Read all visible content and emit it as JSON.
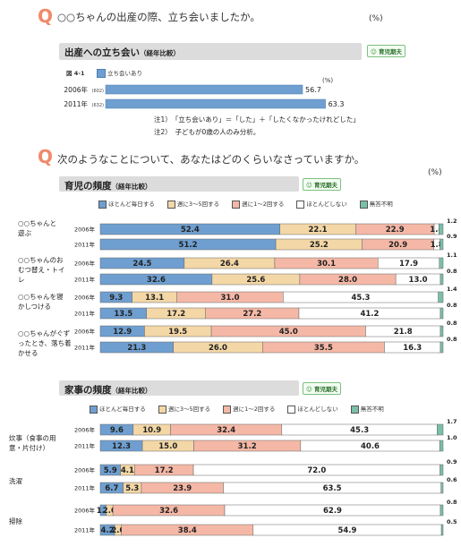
{
  "q1": {
    "mark": "Q",
    "text": "○○ちゃんの出産の際、立ち会いましたか。",
    "pct": "(%)"
  },
  "badge": "育児期夫",
  "sec1": {
    "title": "出産への立ち会い",
    "sub": "（経年比較）"
  },
  "fig": {
    "id": "図 4-1",
    "legend": "立ち会いあり",
    "pct": "(%)"
  },
  "notes": [
    {
      "label": "注1）",
      "text": "「立ち会いあり」＝「した」＋「したくなかったけれどした」"
    },
    {
      "label": "注2）",
      "text": "子どもが0歳の人のみ分析。"
    }
  ],
  "q2": {
    "mark": "Q",
    "text": "次のようなことについて、あなたはどのくらいなさっていますか。",
    "pct": "(%)"
  },
  "sec2": {
    "title": "育児の頻度",
    "sub": "（経年比較）"
  },
  "sec3": {
    "title": "家事の頻度",
    "sub": "（経年比較）"
  },
  "legend_items": [
    {
      "label": "ほとんど毎日する",
      "color": "#6f9fd0"
    },
    {
      "label": "週に3～5回する",
      "color": "#f3d7a6"
    },
    {
      "label": "週に1～2回する",
      "color": "#f5b8a6"
    },
    {
      "label": "ほとんどしない",
      "color": "#ffffff"
    },
    {
      "label": "無答不明",
      "color": "#7abfa8"
    }
  ],
  "chart_data": [
    {
      "type": "bar",
      "title": "出産への立ち会い",
      "series": [
        {
          "name": "立ち会いあり",
          "values": [
            56.7,
            63.3
          ]
        }
      ],
      "categories": [
        "2006年",
        "2011年"
      ],
      "counts": [
        "(602)",
        "(632)"
      ],
      "value_labels": [
        "56.7",
        "63.3"
      ]
    },
    {
      "type": "bar",
      "title": "育児の頻度",
      "groups": [
        {
          "label": "○○ちゃんと遊ぶ",
          "rows": [
            {
              "year": "2006年",
              "values": [
                52.4,
                22.1,
                22.9,
                1.4,
                1.2
              ],
              "labels": [
                "52.4",
                "22.1",
                "22.9",
                "1.4",
                "1.2"
              ]
            },
            {
              "year": "2011年",
              "values": [
                51.2,
                25.2,
                20.9,
                1.8,
                0.9
              ],
              "labels": [
                "51.2",
                "25.2",
                "20.9",
                "1.8",
                "0.9"
              ]
            }
          ]
        },
        {
          "label": "○○ちゃんのおむつ替え・トイレ",
          "rows": [
            {
              "year": "2006年",
              "values": [
                24.5,
                26.4,
                30.1,
                17.9,
                1.1
              ],
              "labels": [
                "24.5",
                "26.4",
                "30.1",
                "17.9",
                "1.1"
              ]
            },
            {
              "year": "2011年",
              "values": [
                32.6,
                25.6,
                28.0,
                13.0,
                0.8
              ],
              "labels": [
                "32.6",
                "25.6",
                "28.0",
                "13.0",
                "0.8"
              ]
            }
          ]
        },
        {
          "label": "○○ちゃんを寝かしつける",
          "rows": [
            {
              "year": "2006年",
              "values": [
                9.3,
                13.1,
                31.0,
                45.3,
                1.4
              ],
              "labels": [
                "9.3",
                "13.1",
                "31.0",
                "45.3",
                "1.4"
              ]
            },
            {
              "year": "2011年",
              "values": [
                13.5,
                17.2,
                27.2,
                41.2,
                0.8
              ],
              "labels": [
                "13.5",
                "17.2",
                "27.2",
                "41.2",
                "0.8"
              ]
            }
          ]
        },
        {
          "label": "○○ちゃんがぐずったとき、落ち着かせる",
          "rows": [
            {
              "year": "2006年",
              "values": [
                12.9,
                19.5,
                45.0,
                21.8,
                0.8
              ],
              "labels": [
                "12.9",
                "19.5",
                "45.0",
                "21.8",
                "0.8"
              ]
            },
            {
              "year": "2011年",
              "values": [
                21.3,
                26.0,
                35.5,
                16.3,
                0.8
              ],
              "labels": [
                "21.3",
                "26.0",
                "35.5",
                "16.3",
                "0.8"
              ]
            }
          ]
        }
      ]
    },
    {
      "type": "bar",
      "title": "家事の頻度",
      "groups": [
        {
          "label": "炊事（食事の用意・片付け）",
          "rows": [
            {
              "year": "2006年",
              "values": [
                9.6,
                10.9,
                32.4,
                45.3,
                1.7
              ],
              "labels": [
                "9.6",
                "10.9",
                "32.4",
                "45.3",
                "1.7"
              ]
            },
            {
              "year": "2011年",
              "values": [
                12.3,
                15.0,
                31.2,
                40.6,
                1.0
              ],
              "labels": [
                "12.3",
                "15.0",
                "31.2",
                "40.6",
                "1.0"
              ]
            }
          ]
        },
        {
          "label": "洗濯",
          "rows": [
            {
              "year": "2006年",
              "values": [
                5.9,
                4.1,
                17.2,
                72.0,
                0.9
              ],
              "labels": [
                "5.9",
                "4.1",
                "17.2",
                "72.0",
                "0.9"
              ]
            },
            {
              "year": "2011年",
              "values": [
                6.7,
                5.3,
                23.9,
                63.5,
                0.6
              ],
              "labels": [
                "6.7",
                "5.3",
                "23.9",
                "63.5",
                "0.6"
              ]
            }
          ]
        },
        {
          "label": "掃除",
          "rows": [
            {
              "year": "2006年",
              "values": [
                1.7,
                2.0,
                32.6,
                62.9,
                0.8
              ],
              "labels": [
                "1.7",
                "2.0",
                "32.6",
                "62.9",
                "0.8"
              ]
            },
            {
              "year": "2011年",
              "values": [
                4.2,
                2.0,
                38.4,
                54.9,
                0.5
              ],
              "labels": [
                "4.2",
                "2.0",
                "38.4",
                "54.9",
                "0.5"
              ]
            }
          ]
        }
      ]
    }
  ]
}
